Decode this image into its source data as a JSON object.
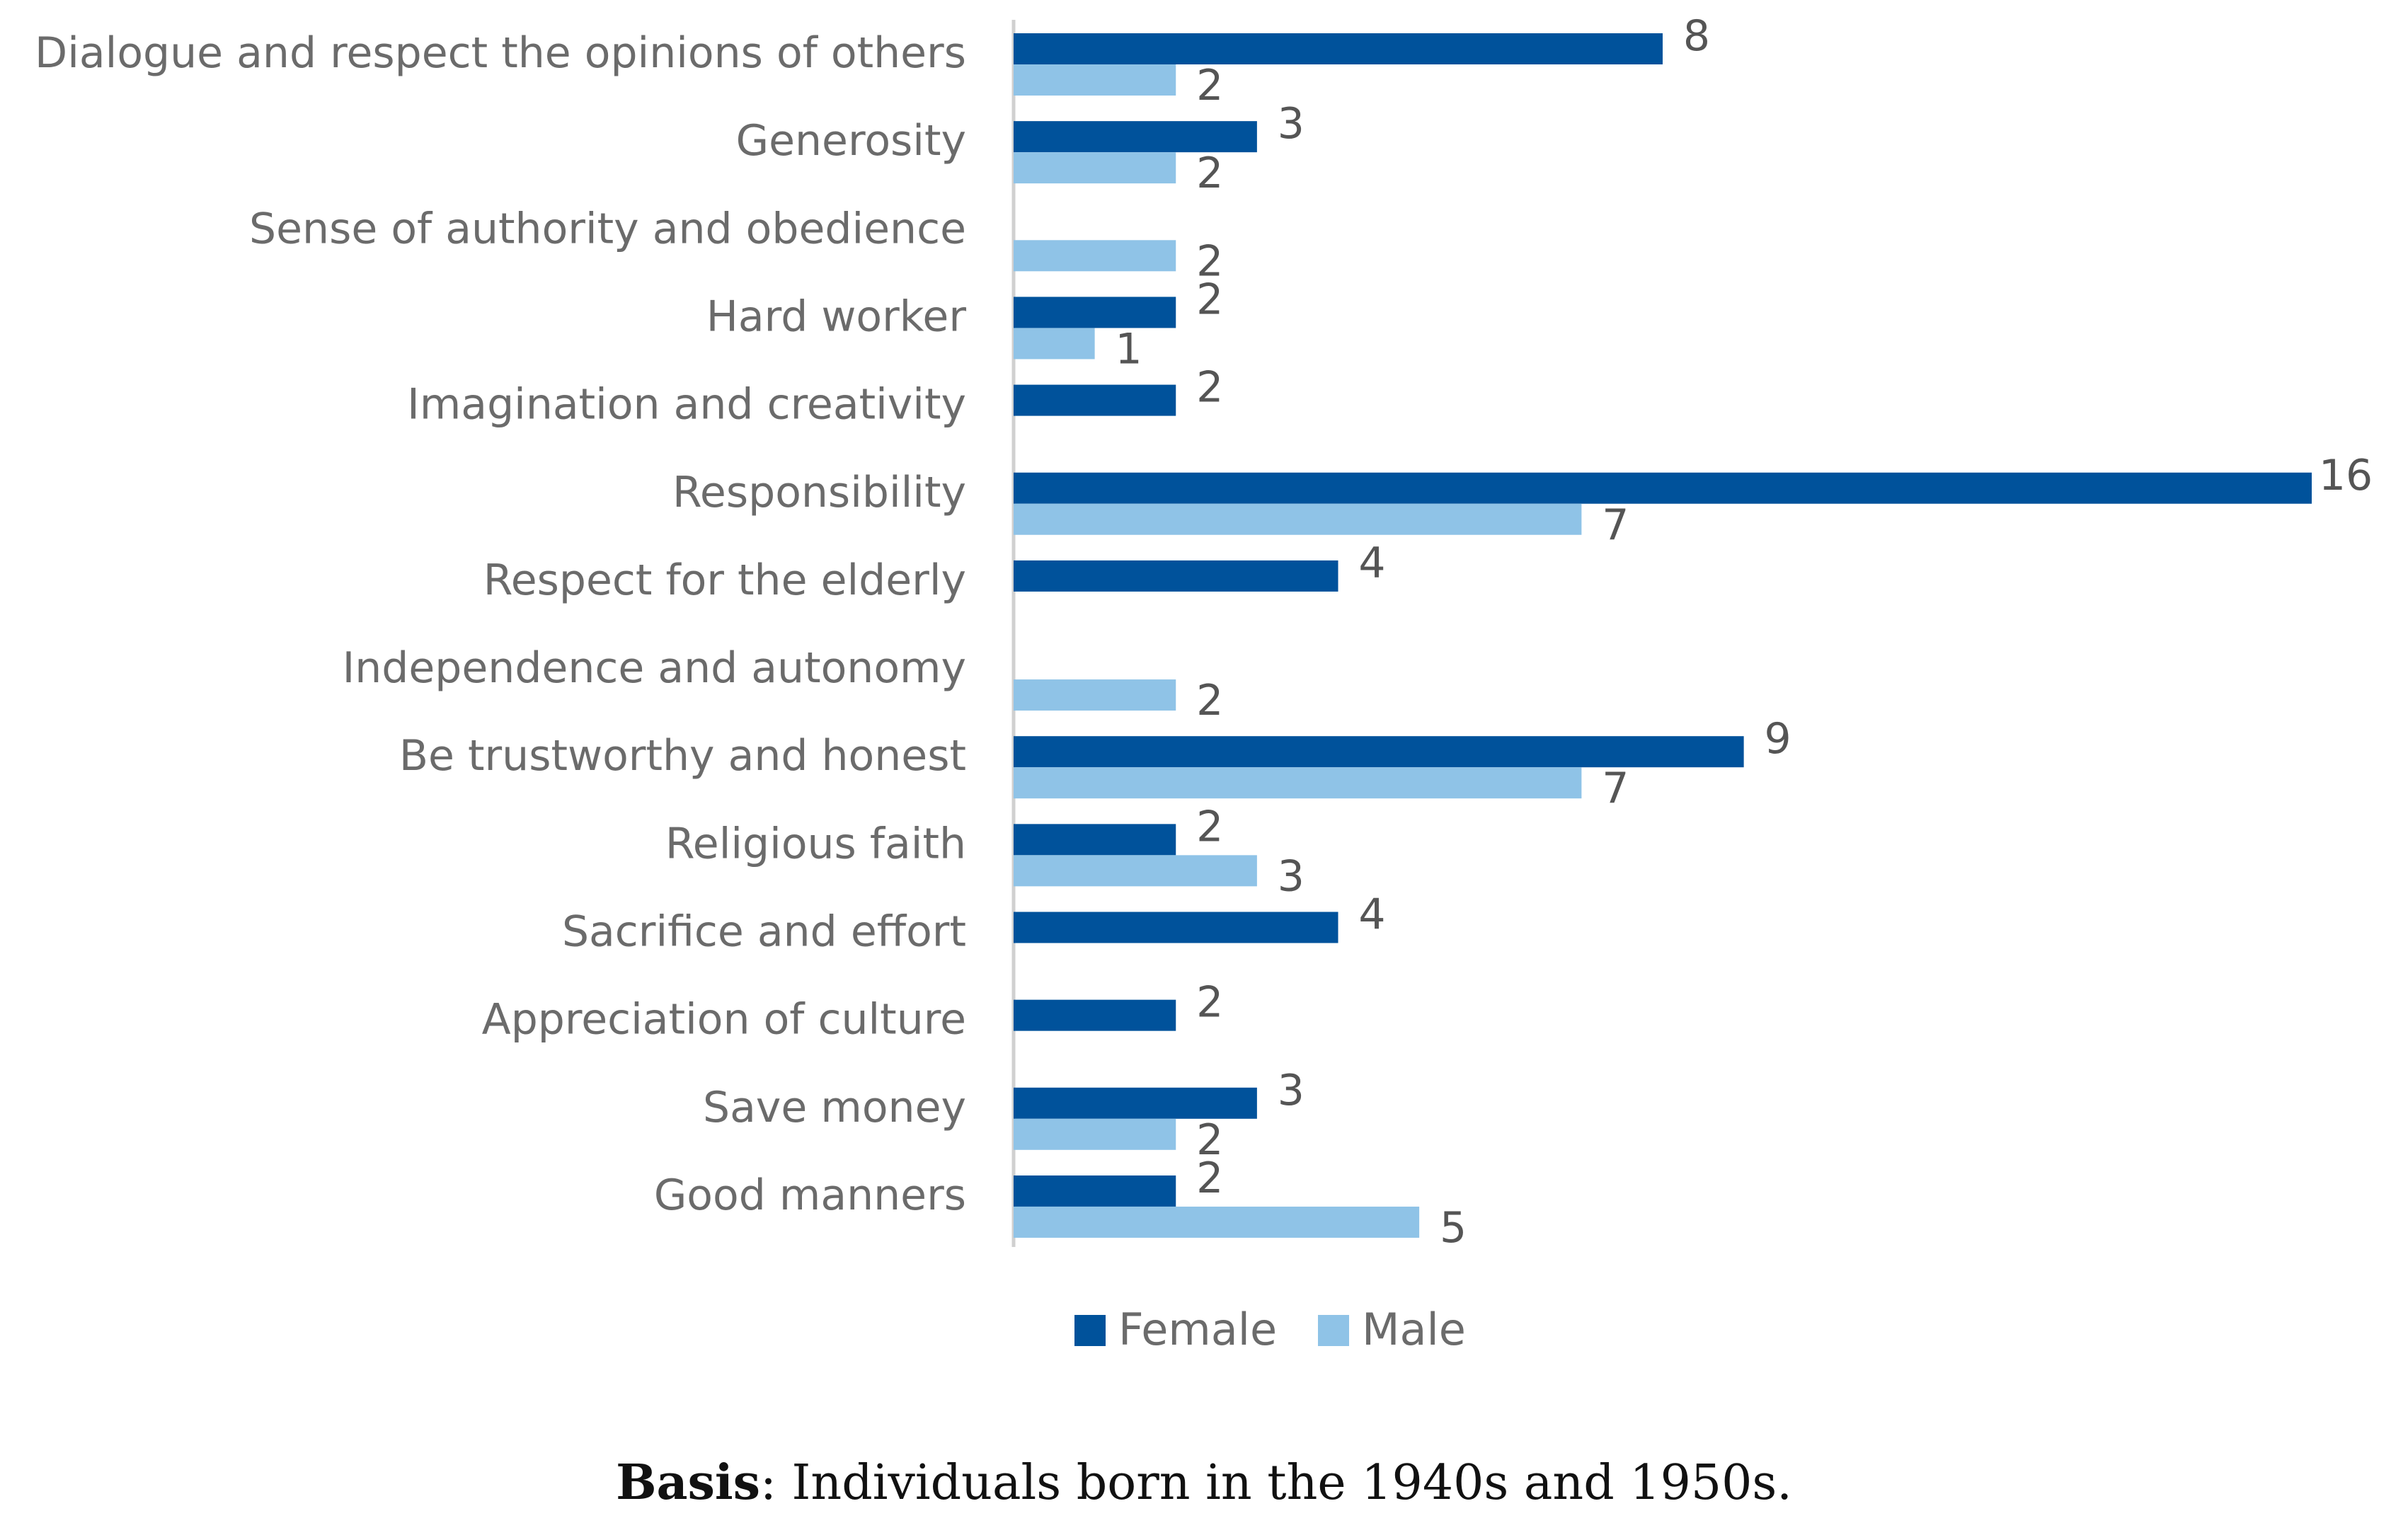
{
  "chart_data": {
    "type": "bar",
    "orientation": "horizontal",
    "categories": [
      "Dialogue and respect the opinions of others",
      "Generosity",
      "Sense of authority and obedience",
      "Hard worker",
      "Imagination and creativity",
      "Responsibility",
      "Respect for the elderly",
      "Independence and autonomy",
      "Be trustworthy and honest",
      "Religious faith",
      "Sacrifice and effort",
      "Appreciation of culture",
      "Save money",
      "Good manners"
    ],
    "series": [
      {
        "name": "Female",
        "color": "#00529b",
        "values": [
          8,
          3,
          null,
          2,
          2,
          16,
          4,
          null,
          9,
          2,
          4,
          2,
          3,
          2
        ]
      },
      {
        "name": "Male",
        "color": "#8fc3e7",
        "values": [
          2,
          2,
          2,
          1,
          null,
          7,
          null,
          2,
          7,
          3,
          null,
          null,
          2,
          5
        ]
      }
    ],
    "xlim": [
      0,
      16
    ],
    "grid": false,
    "legend_position": "bottom"
  },
  "caption": {
    "bold": "Basis",
    "rest": ": Individuals born in the 1940s and 1950s."
  }
}
